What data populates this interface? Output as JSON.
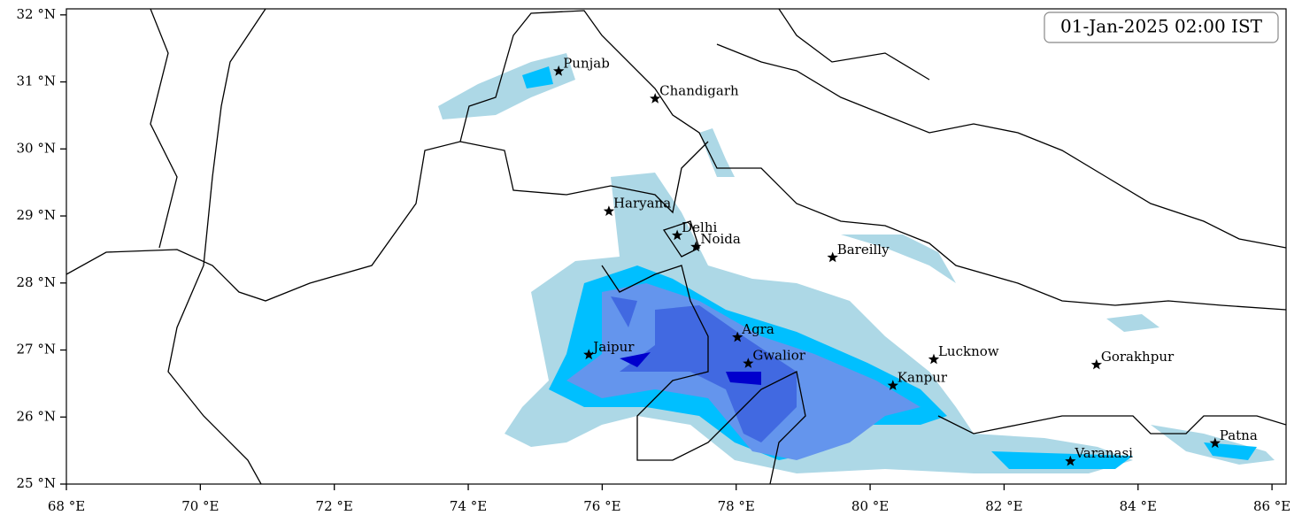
{
  "map": {
    "title": "01-Jan-2025 02:00 IST",
    "xlim": [
      68,
      86.21
    ],
    "ylim": [
      25,
      32.09
    ],
    "xticks": [
      {
        "value": 68,
        "label": "68 °E"
      },
      {
        "value": 70,
        "label": "70 °E"
      },
      {
        "value": 72,
        "label": "72 °E"
      },
      {
        "value": 74,
        "label": "74 °E"
      },
      {
        "value": 76,
        "label": "76 °E"
      },
      {
        "value": 78,
        "label": "78 °E"
      },
      {
        "value": 80,
        "label": "80 °E"
      },
      {
        "value": 82,
        "label": "82 °E"
      },
      {
        "value": 84,
        "label": "84 °E"
      },
      {
        "value": 86,
        "label": "86 °E"
      }
    ],
    "yticks": [
      {
        "value": 25,
        "label": "25 °N"
      },
      {
        "value": 26,
        "label": "26 °N"
      },
      {
        "value": 27,
        "label": "27 °N"
      },
      {
        "value": 28,
        "label": "28 °N"
      },
      {
        "value": 29,
        "label": "29 °N"
      },
      {
        "value": 30,
        "label": "30 °N"
      },
      {
        "value": 31,
        "label": "31 °N"
      },
      {
        "value": 32,
        "label": "32 °N"
      }
    ],
    "places": [
      {
        "name": "Punjab",
        "lon": 75.35,
        "lat": 31.16
      },
      {
        "name": "Chandigarh",
        "lon": 76.79,
        "lat": 30.75
      },
      {
        "name": "Haryana",
        "lon": 76.1,
        "lat": 29.07
      },
      {
        "name": "Delhi",
        "lon": 77.12,
        "lat": 28.71
      },
      {
        "name": "Noida",
        "lon": 77.4,
        "lat": 28.54
      },
      {
        "name": "Bareilly",
        "lon": 79.44,
        "lat": 28.38
      },
      {
        "name": "Agra",
        "lon": 78.02,
        "lat": 27.19
      },
      {
        "name": "Jaipur",
        "lon": 75.8,
        "lat": 26.93
      },
      {
        "name": "Gwalior",
        "lon": 78.18,
        "lat": 26.8
      },
      {
        "name": "Lucknow",
        "lon": 80.95,
        "lat": 26.86
      },
      {
        "name": "Gorakhpur",
        "lon": 83.38,
        "lat": 26.78
      },
      {
        "name": "Kanpur",
        "lon": 80.34,
        "lat": 26.47
      },
      {
        "name": "Varanasi",
        "lon": 82.99,
        "lat": 25.34
      },
      {
        "name": "Patna",
        "lon": 85.15,
        "lat": 25.61
      }
    ]
  }
}
